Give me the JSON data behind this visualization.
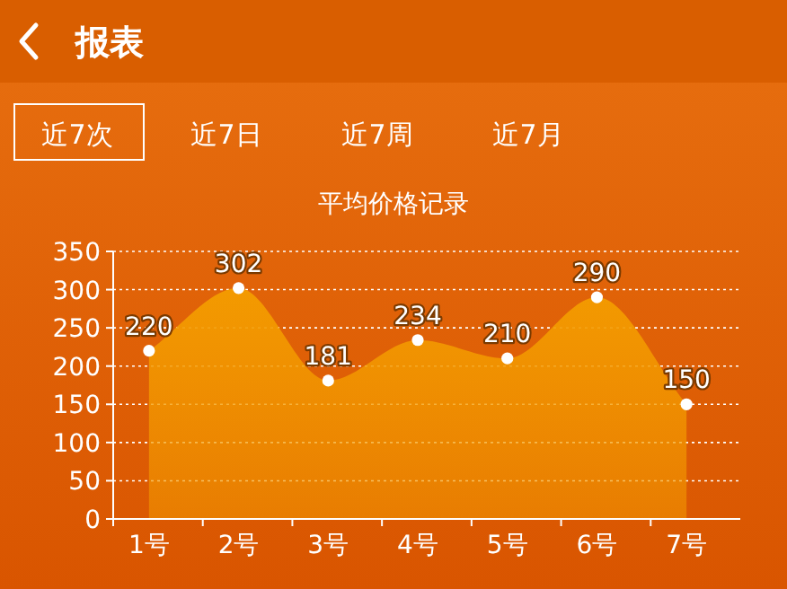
{
  "chart_data": {
    "type": "area",
    "title": "平均价格记录",
    "annotations": [
      "报表",
      "近7次",
      "近7日",
      "近7周",
      "近7月"
    ],
    "categories": [
      "1号",
      "2号",
      "3号",
      "4号",
      "5号",
      "6号",
      "7号"
    ],
    "values": [
      220,
      302,
      181,
      234,
      210,
      290,
      150
    ],
    "color": "#f39a00",
    "ylim": [
      0,
      350
    ],
    "yticks": [
      0,
      50,
      100,
      150,
      200,
      250,
      300,
      350
    ],
    "grid": "y",
    "marker": "circle",
    "data_labels": true
  }
}
